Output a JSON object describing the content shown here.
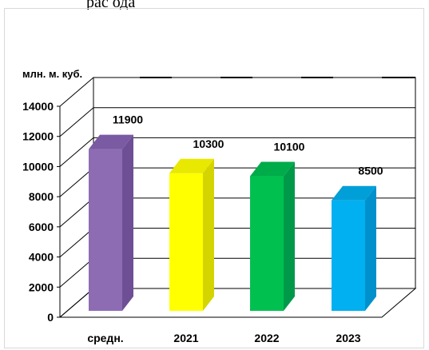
{
  "header_text": "рас       ода",
  "chart_data": {
    "type": "bar",
    "ylabel": "млн. м. куб.",
    "categories": [
      "средн.",
      "2021",
      "2022",
      "2023"
    ],
    "values": [
      11900,
      10300,
      10100,
      8500
    ],
    "data_labels": [
      "11900",
      "10300",
      "10100",
      "8500"
    ],
    "ylim": [
      0,
      14000
    ],
    "yticks": [
      "0",
      "2000",
      "4000",
      "6000",
      "8000",
      "10000",
      "12000",
      "14000"
    ],
    "grid": true,
    "legend": "none",
    "colors": [
      "#8e6cb4",
      "#ffff00",
      "#00c050",
      "#00b0f0"
    ],
    "side_colors": [
      "#6e4f95",
      "#d4d400",
      "#00994a",
      "#0090cc"
    ],
    "top_colors": [
      "#7a5aa3",
      "#e8e800",
      "#00ab4a",
      "#009fd8"
    ]
  }
}
